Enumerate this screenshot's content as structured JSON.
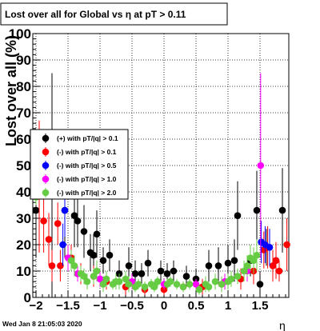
{
  "chart_data": {
    "type": "scatter",
    "title": "Lost over all for Global vs   η at pT > 0.11",
    "ylabel": "Lost over all (%)",
    "xlabel": "η",
    "xlim": [
      -2.05,
      1.95
    ],
    "ylim": [
      0,
      100
    ],
    "x_ticks": [
      -2,
      -1.5,
      -1,
      -0.5,
      0,
      0.5,
      1,
      1.5
    ],
    "x_tick_labels": [
      "−2",
      "−1.5",
      "−1",
      "−0.5",
      "0",
      "0.5",
      "1",
      "1.5"
    ],
    "y_ticks": [
      0,
      10,
      20,
      30,
      40,
      50,
      60,
      70,
      80,
      90,
      100
    ],
    "y_tick_labels": [
      "0",
      "10",
      "20",
      "30",
      "40",
      "50",
      "60",
      "70",
      "80",
      "90",
      "100"
    ],
    "grid": true,
    "legend_position": "center-left",
    "timestamp": "Wed Jan  8 21:05:03 2020",
    "series": [
      {
        "name": "(+) with pT/|q| > 0.1",
        "color": "#000000",
        "points": [
          {
            "x": -2.0,
            "y": 33,
            "err": 18
          },
          {
            "x": -1.75,
            "y": 42,
            "err": 43
          },
          {
            "x": -1.55,
            "y": 33,
            "err": 18
          },
          {
            "x": -1.4,
            "y": 31,
            "err": 12
          },
          {
            "x": -1.35,
            "y": 29,
            "err": 10
          },
          {
            "x": -1.25,
            "y": 25,
            "err": 10
          },
          {
            "x": -1.15,
            "y": 17,
            "err": 7
          },
          {
            "x": -1.1,
            "y": 16,
            "err": 8
          },
          {
            "x": -1.05,
            "y": 24,
            "err": 9
          },
          {
            "x": -0.95,
            "y": 14,
            "err": 5
          },
          {
            "x": -0.85,
            "y": 16,
            "err": 6
          },
          {
            "x": -0.7,
            "y": 9,
            "err": 5
          },
          {
            "x": -0.55,
            "y": 12,
            "err": 7
          },
          {
            "x": -0.45,
            "y": 9,
            "err": 5
          },
          {
            "x": -0.35,
            "y": 9,
            "err": 4
          },
          {
            "x": -0.25,
            "y": 13,
            "err": 5
          },
          {
            "x": -0.05,
            "y": 10,
            "err": 4
          },
          {
            "x": 0.05,
            "y": 9,
            "err": 4
          },
          {
            "x": 0.15,
            "y": 10,
            "err": 4
          },
          {
            "x": 0.35,
            "y": 8,
            "err": 4
          },
          {
            "x": 0.5,
            "y": 7,
            "err": 4
          },
          {
            "x": 0.7,
            "y": 12,
            "err": 6
          },
          {
            "x": 0.85,
            "y": 12,
            "err": 7
          },
          {
            "x": 1.0,
            "y": 13,
            "err": 7
          },
          {
            "x": 1.1,
            "y": 14,
            "err": 8
          },
          {
            "x": 1.15,
            "y": 31,
            "err": 13
          },
          {
            "x": 1.35,
            "y": 14,
            "err": 6
          },
          {
            "x": 1.45,
            "y": 33,
            "err": 15
          },
          {
            "x": 1.5,
            "y": 5,
            "err": 5
          },
          {
            "x": 1.6,
            "y": 19,
            "err": 7
          },
          {
            "x": 1.85,
            "y": 33,
            "err": 16
          }
        ]
      },
      {
        "name": "(-) with pT/|q| > 0.1",
        "color": "#ff0000",
        "points": [
          {
            "x": -1.95,
            "y": 42,
            "err": 25
          },
          {
            "x": -1.88,
            "y": 29,
            "err": 12
          },
          {
            "x": -1.8,
            "y": 22,
            "err": 10
          },
          {
            "x": -1.75,
            "y": 12,
            "err": 6
          },
          {
            "x": -1.66,
            "y": 28,
            "err": 8
          },
          {
            "x": -1.62,
            "y": 12,
            "err": 6
          },
          {
            "x": -1.45,
            "y": 15,
            "err": 5
          },
          {
            "x": -1.3,
            "y": 9,
            "err": 4
          },
          {
            "x": -1.1,
            "y": 8,
            "err": 4
          },
          {
            "x": -0.9,
            "y": 6,
            "err": 3
          },
          {
            "x": -0.6,
            "y": 4,
            "err": 3
          },
          {
            "x": -0.3,
            "y": 3,
            "err": 2
          },
          {
            "x": 0.0,
            "y": 3,
            "err": 2
          },
          {
            "x": 0.3,
            "y": 4,
            "err": 2
          },
          {
            "x": 0.6,
            "y": 4,
            "err": 3
          },
          {
            "x": 0.9,
            "y": 5,
            "err": 3
          },
          {
            "x": 1.2,
            "y": 7,
            "err": 4
          },
          {
            "x": 1.4,
            "y": 10,
            "err": 5
          },
          {
            "x": 1.56,
            "y": 18,
            "err": 7
          },
          {
            "x": 1.62,
            "y": 19,
            "err": 8
          },
          {
            "x": 1.7,
            "y": 12,
            "err": 6
          },
          {
            "x": 1.75,
            "y": 14,
            "err": 7
          },
          {
            "x": 1.8,
            "y": 10,
            "err": 4
          },
          {
            "x": 1.92,
            "y": 20,
            "err": 10
          }
        ]
      },
      {
        "name": "(-) with pT/|q| > 0.5",
        "color": "#0000ff",
        "points": [
          {
            "x": -1.55,
            "y": 33,
            "err": 10
          },
          {
            "x": -1.58,
            "y": 20,
            "err": 8
          },
          {
            "x": 1.52,
            "y": 21,
            "err": 8
          },
          {
            "x": 1.58,
            "y": 20,
            "err": 7
          },
          {
            "x": 1.65,
            "y": 19,
            "err": 7
          }
        ]
      },
      {
        "name": "(-) with pT/|q| > 1.0",
        "color": "#ff00ff",
        "points": [
          {
            "x": -1.5,
            "y": 15,
            "err": 5
          },
          {
            "x": -1.35,
            "y": 9,
            "err": 3
          },
          {
            "x": -1.0,
            "y": 7,
            "err": 3
          },
          {
            "x": -0.5,
            "y": 6,
            "err": 3
          },
          {
            "x": 0.0,
            "y": 5,
            "err": 2
          },
          {
            "x": 0.5,
            "y": 5,
            "err": 2
          },
          {
            "x": 0.95,
            "y": 6,
            "err": 3
          },
          {
            "x": 1.3,
            "y": 10,
            "err": 4
          },
          {
            "x": 1.51,
            "y": 50,
            "err": 35
          }
        ]
      },
      {
        "name": "(-) with pT/|q| > 2.0",
        "color": "#66cc44",
        "points": [
          {
            "x": -2.0,
            "y": 38,
            "err": 3
          },
          {
            "x": -1.45,
            "y": 14,
            "err": 4
          },
          {
            "x": -1.4,
            "y": 12,
            "err": 4
          },
          {
            "x": -1.3,
            "y": 9,
            "err": 3
          },
          {
            "x": -1.25,
            "y": 8,
            "err": 3
          },
          {
            "x": -1.2,
            "y": 6,
            "err": 3
          },
          {
            "x": -1.1,
            "y": 8,
            "err": 3
          },
          {
            "x": -1.05,
            "y": 10,
            "err": 4
          },
          {
            "x": -0.95,
            "y": 5,
            "err": 3
          },
          {
            "x": -0.9,
            "y": 7,
            "err": 3
          },
          {
            "x": -0.8,
            "y": 5,
            "err": 2
          },
          {
            "x": -0.75,
            "y": 6,
            "err": 3
          },
          {
            "x": -0.7,
            "y": 6,
            "err": 3
          },
          {
            "x": -0.6,
            "y": 7,
            "err": 3
          },
          {
            "x": -0.55,
            "y": 5,
            "err": 3
          },
          {
            "x": -0.45,
            "y": 4,
            "err": 2
          },
          {
            "x": -0.4,
            "y": 5,
            "err": 2
          },
          {
            "x": -0.3,
            "y": 4,
            "err": 2
          },
          {
            "x": -0.2,
            "y": 5,
            "err": 2
          },
          {
            "x": -0.15,
            "y": 4,
            "err": 2
          },
          {
            "x": -0.1,
            "y": 6,
            "err": 2
          },
          {
            "x": 0.05,
            "y": 5,
            "err": 2
          },
          {
            "x": 0.1,
            "y": 6,
            "err": 2
          },
          {
            "x": 0.2,
            "y": 5,
            "err": 2
          },
          {
            "x": 0.3,
            "y": 4,
            "err": 2
          },
          {
            "x": 0.4,
            "y": 5,
            "err": 2
          },
          {
            "x": 0.55,
            "y": 3,
            "err": 2
          },
          {
            "x": 0.65,
            "y": 5,
            "err": 3
          },
          {
            "x": 0.7,
            "y": 4,
            "err": 2
          },
          {
            "x": 0.8,
            "y": 6,
            "err": 3
          },
          {
            "x": 0.9,
            "y": 5,
            "err": 3
          },
          {
            "x": 1.0,
            "y": 6,
            "err": 3
          },
          {
            "x": 1.05,
            "y": 7,
            "err": 3
          },
          {
            "x": 1.15,
            "y": 8,
            "err": 3
          },
          {
            "x": 1.25,
            "y": 10,
            "err": 4
          },
          {
            "x": 1.3,
            "y": 12,
            "err": 4
          },
          {
            "x": 1.35,
            "y": 15,
            "err": 5
          },
          {
            "x": 1.4,
            "y": 14,
            "err": 5
          },
          {
            "x": 1.45,
            "y": 16,
            "err": 6
          }
        ]
      }
    ]
  }
}
